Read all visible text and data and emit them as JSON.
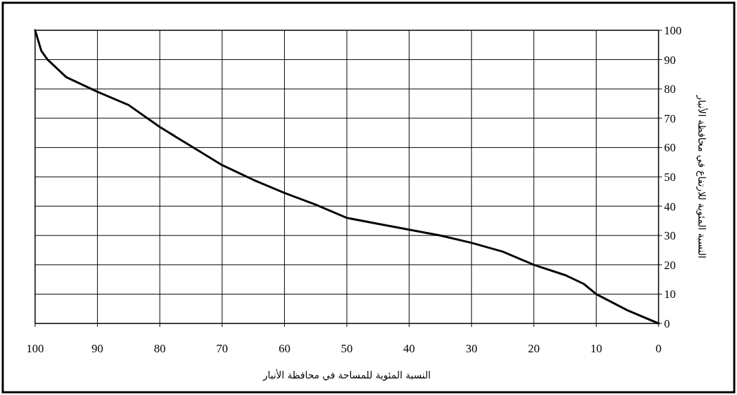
{
  "chart_data": {
    "type": "line",
    "xlabel": "النسبة المئوية للمساحة في محافظة الأنبار",
    "ylabel": "النسبة المئوية للارتفاع في محافظة الأنبار",
    "x": [
      100,
      99,
      98,
      97,
      95,
      90,
      85,
      82,
      80,
      75,
      70,
      65,
      60,
      55,
      50,
      45,
      40,
      35,
      30,
      25,
      20,
      15,
      12,
      10,
      5,
      0
    ],
    "series": [
      {
        "color": "#000000",
        "values": [
          100,
          93,
          90,
          88,
          84,
          79,
          74.5,
          70,
          67,
          60.5,
          54,
          49,
          44.5,
          40.5,
          36,
          34,
          32,
          30,
          27.5,
          24.5,
          20,
          16.5,
          13.5,
          10,
          4.5,
          0
        ]
      }
    ],
    "xlim": [
      100,
      0
    ],
    "ylim": [
      0,
      100
    ],
    "xticks": [
      100,
      90,
      80,
      70,
      60,
      50,
      40,
      30,
      20,
      10,
      0
    ],
    "yticks": [
      0,
      10,
      20,
      30,
      40,
      50,
      60,
      70,
      80,
      90,
      100
    ],
    "grid": true,
    "marker": "none",
    "line_style": "solid"
  }
}
